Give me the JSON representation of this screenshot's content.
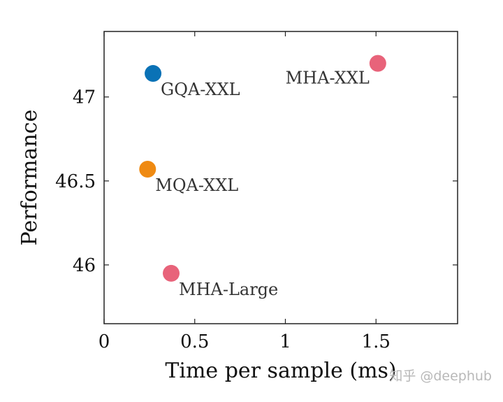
{
  "chart_data": {
    "type": "scatter",
    "xlabel": "Time per sample (ms)",
    "ylabel": "Performance",
    "xlim": [
      0,
      1.95
    ],
    "ylim": [
      45.65,
      47.39
    ],
    "xticks": [
      {
        "value": 0,
        "label": "0"
      },
      {
        "value": 0.5,
        "label": "0.5"
      },
      {
        "value": 1,
        "label": "1"
      },
      {
        "value": 1.5,
        "label": "1.5"
      }
    ],
    "yticks": [
      {
        "value": 46,
        "label": "46"
      },
      {
        "value": 46.5,
        "label": "46.5"
      },
      {
        "value": 47,
        "label": "47"
      }
    ],
    "grid": false,
    "points": [
      {
        "label": "MHA-XXL",
        "x": 1.51,
        "y": 47.2,
        "color": "#e8637a",
        "label_side": "left"
      },
      {
        "label": "GQA-XXL",
        "x": 0.27,
        "y": 47.14,
        "color": "#0a72b6",
        "label_side": "right"
      },
      {
        "label": "MQA-XXL",
        "x": 0.24,
        "y": 46.57,
        "color": "#ef8a12",
        "label_side": "right"
      },
      {
        "label": "MHA-Large",
        "x": 0.37,
        "y": 45.95,
        "color": "#e8637a",
        "label_side": "right"
      }
    ]
  },
  "watermark": "知乎 @deephub"
}
